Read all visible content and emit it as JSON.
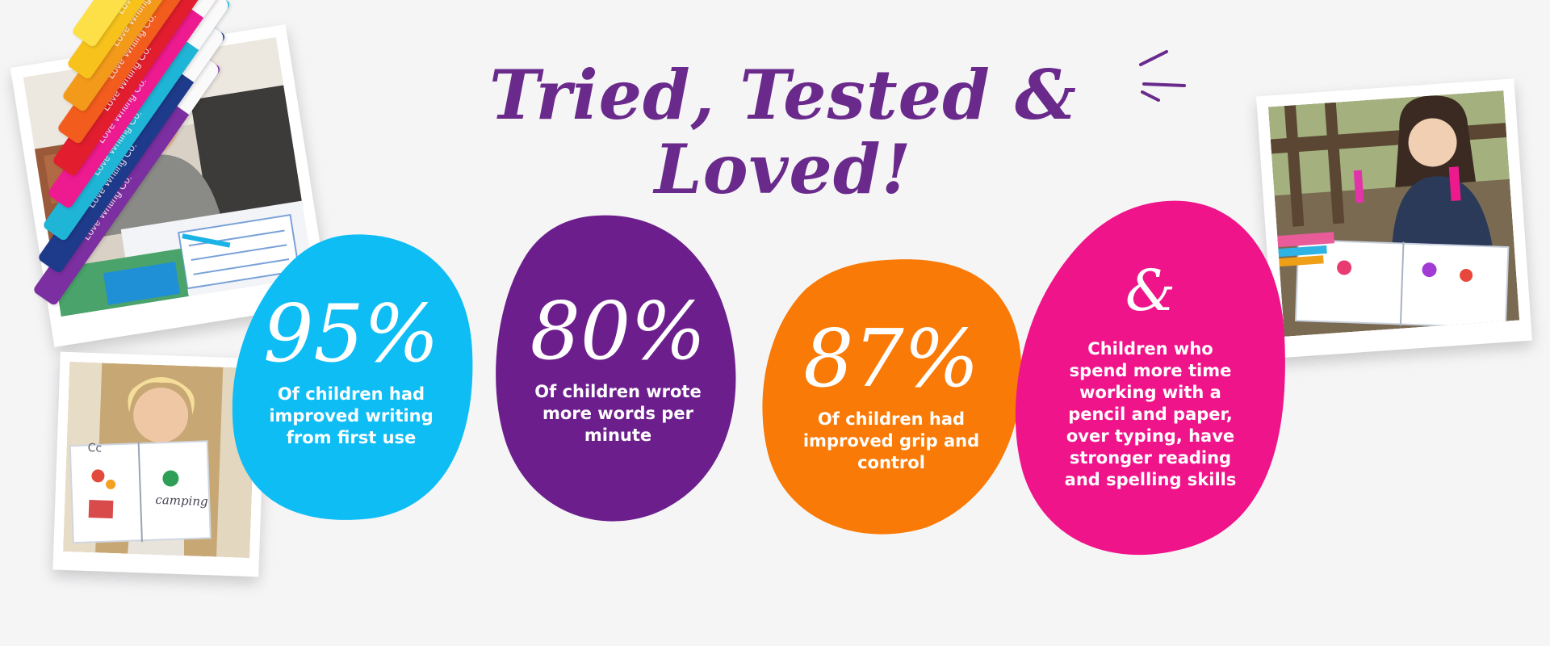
{
  "headline": "Tried, Tested & Loved!",
  "colors": {
    "background": "#f5f5f6",
    "headline": "#6a2a8c",
    "blue": "#0fbdf5",
    "purple": "#6c1f8c",
    "orange": "#f97a06",
    "pink": "#f0148a"
  },
  "stats": [
    {
      "value": "95%",
      "text": "Of children had improved writing from first use"
    },
    {
      "value": "80%",
      "text": "Of children wrote more words per minute"
    },
    {
      "value": "87%",
      "text": "Of children had improved grip and control"
    },
    {
      "value": "&",
      "text": "Children who spend more time working with a pencil and paper, over typing, have stronger reading and spelling skills"
    }
  ],
  "photos": [
    {
      "name": "boy-writing-photo"
    },
    {
      "name": "girl-holding-workbook-photo"
    },
    {
      "name": "girl-with-pens-photo"
    }
  ],
  "workbook": {
    "letters": "Cc",
    "word": "camping"
  },
  "pens": {
    "brand": "Love Writing Co.",
    "colors": [
      "#7b2fa0",
      "#1e3a8a",
      "#1fb5d6",
      "#ee1a8f",
      "#e11d2e",
      "#f25c1d",
      "#f39a1a",
      "#f7c21c",
      "#fde047"
    ]
  }
}
